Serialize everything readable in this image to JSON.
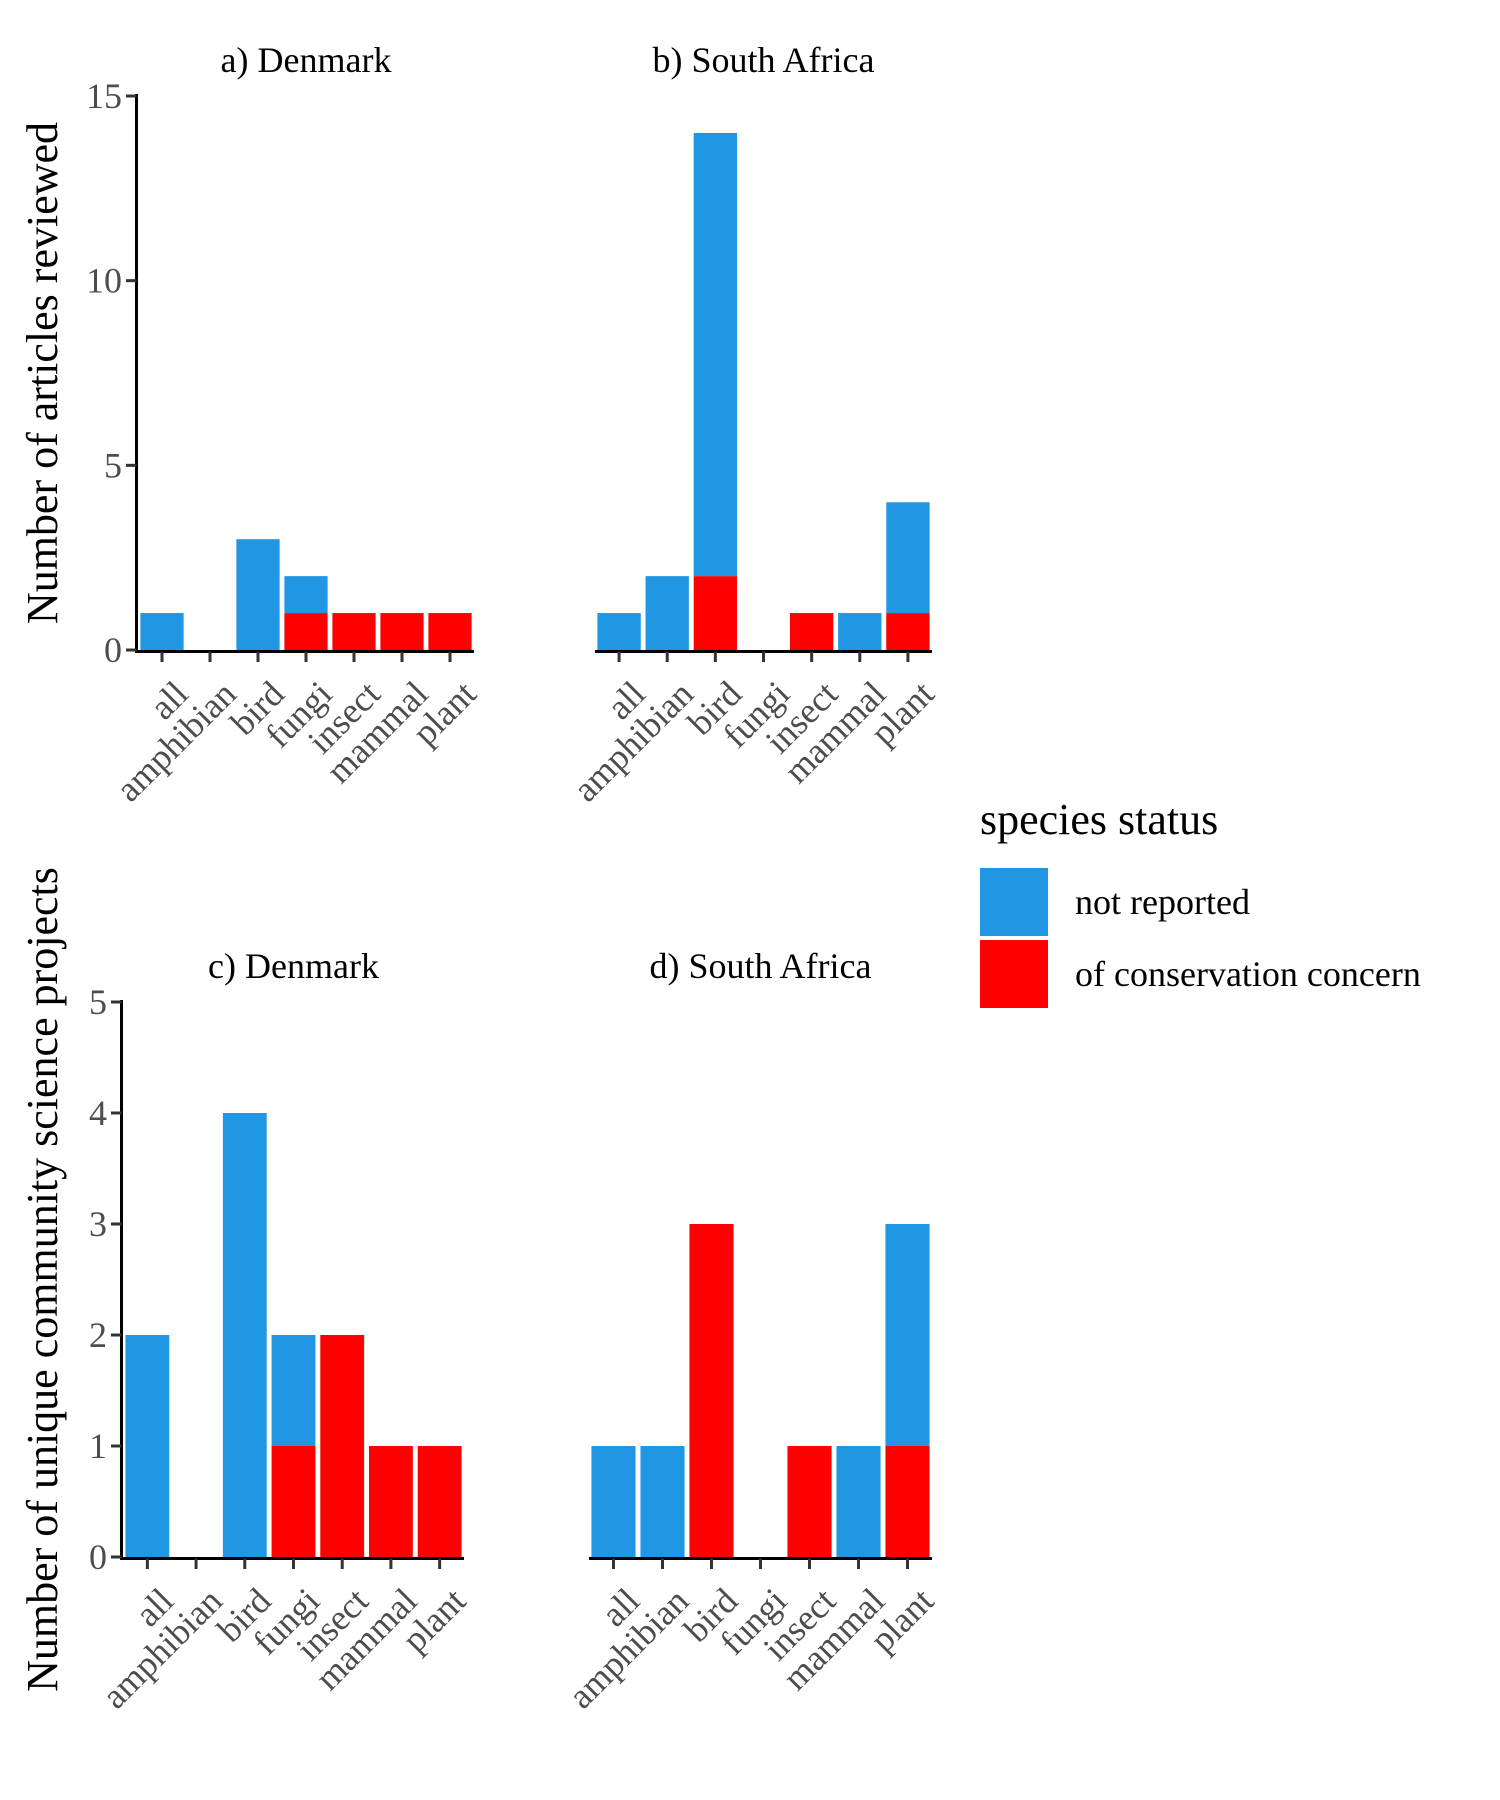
{
  "legend": {
    "title": "species status",
    "items": [
      {
        "label": "not reported",
        "color": "#2196E3"
      },
      {
        "label": "of conservation concern",
        "color": "#FF0000"
      }
    ]
  },
  "chart_data": [
    {
      "type": "bar",
      "stacked": true,
      "title": "a) Denmark",
      "ylabel": "Number of articles reviewed",
      "categories": [
        "all",
        "amphibian",
        "bird",
        "fungi",
        "insect",
        "mammal",
        "plant"
      ],
      "ylim": [
        0,
        15
      ],
      "yticks": [
        0,
        5,
        10,
        15
      ],
      "series": [
        {
          "name": "of conservation concern",
          "values": [
            0,
            0,
            0,
            1,
            1,
            1,
            1
          ]
        },
        {
          "name": "not reported",
          "values": [
            1,
            0,
            3,
            1,
            0,
            0,
            0
          ]
        }
      ]
    },
    {
      "type": "bar",
      "stacked": true,
      "title": "b) South Africa",
      "categories": [
        "all",
        "amphibian",
        "bird",
        "fungi",
        "insect",
        "mammal",
        "plant"
      ],
      "ylim": [
        0,
        15
      ],
      "yticks": [
        0,
        5,
        10,
        15
      ],
      "series": [
        {
          "name": "of conservation concern",
          "values": [
            0,
            0,
            2,
            0,
            1,
            0,
            1
          ]
        },
        {
          "name": "not reported",
          "values": [
            1,
            2,
            12,
            0,
            0,
            1,
            3
          ]
        }
      ]
    },
    {
      "type": "bar",
      "stacked": true,
      "title": "c) Denmark",
      "ylabel": "Number of unique community science projects",
      "categories": [
        "all",
        "amphibian",
        "bird",
        "fungi",
        "insect",
        "mammal",
        "plant"
      ],
      "ylim": [
        0,
        5
      ],
      "yticks": [
        0,
        1,
        2,
        3,
        4,
        5
      ],
      "series": [
        {
          "name": "of conservation concern",
          "values": [
            0,
            0,
            0,
            1,
            2,
            1,
            1
          ]
        },
        {
          "name": "not reported",
          "values": [
            2,
            0,
            4,
            1,
            0,
            0,
            0
          ]
        }
      ]
    },
    {
      "type": "bar",
      "stacked": true,
      "title": "d) South Africa",
      "categories": [
        "all",
        "amphibian",
        "bird",
        "fungi",
        "insect",
        "mammal",
        "plant"
      ],
      "ylim": [
        0,
        5
      ],
      "yticks": [
        0,
        1,
        2,
        3,
        4,
        5
      ],
      "series": [
        {
          "name": "of conservation concern",
          "values": [
            0,
            0,
            3,
            0,
            1,
            0,
            1
          ]
        },
        {
          "name": "not reported",
          "values": [
            1,
            1,
            0,
            0,
            0,
            1,
            2
          ]
        }
      ]
    }
  ]
}
